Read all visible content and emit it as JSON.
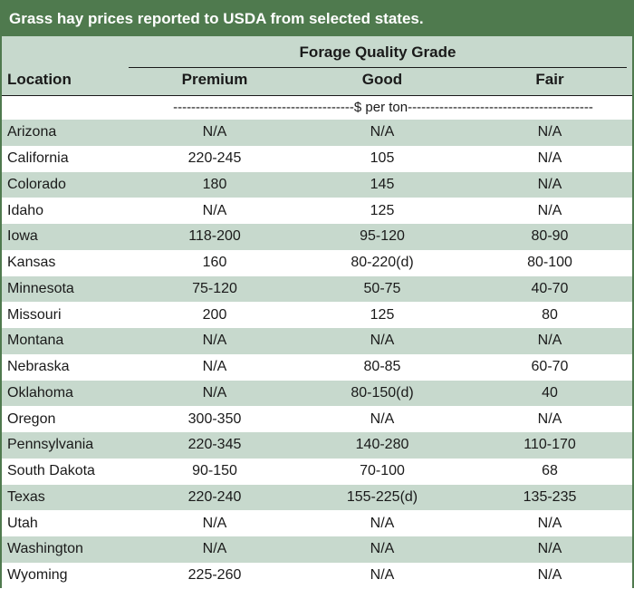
{
  "title": "Grass hay prices reported to USDA from selected states.",
  "header": {
    "location_label": "Location",
    "group_label": "Forage Quality Grade",
    "columns": [
      "Premium",
      "Good",
      "Fair"
    ],
    "units": "----------------------------------------$ per ton-----------------------------------------"
  },
  "rows": [
    {
      "location": "Arizona",
      "premium": "N/A",
      "good": "N/A",
      "fair": "N/A"
    },
    {
      "location": "California",
      "premium": "220-245",
      "good": "105",
      "fair": "N/A"
    },
    {
      "location": "Colorado",
      "premium": "180",
      "good": "145",
      "fair": "N/A"
    },
    {
      "location": "Idaho",
      "premium": "N/A",
      "good": "125",
      "fair": "N/A"
    },
    {
      "location": "Iowa",
      "premium": "118-200",
      "good": "95-120",
      "fair": "80-90"
    },
    {
      "location": "Kansas",
      "premium": "160",
      "good": "80-220(d)",
      "fair": "80-100"
    },
    {
      "location": "Minnesota",
      "premium": "75-120",
      "good": "50-75",
      "fair": "40-70"
    },
    {
      "location": "Missouri",
      "premium": "200",
      "good": "125",
      "fair": "80"
    },
    {
      "location": "Montana",
      "premium": "N/A",
      "good": "N/A",
      "fair": "N/A"
    },
    {
      "location": "Nebraska",
      "premium": "N/A",
      "good": "80-85",
      "fair": "60-70"
    },
    {
      "location": "Oklahoma",
      "premium": "N/A",
      "good": "80-150(d)",
      "fair": "40"
    },
    {
      "location": "Oregon",
      "premium": "300-350",
      "good": "N/A",
      "fair": "N/A"
    },
    {
      "location": "Pennsylvania",
      "premium": "220-345",
      "good": "140-280",
      "fair": "110-170"
    },
    {
      "location": "South Dakota",
      "premium": "90-150",
      "good": "70-100",
      "fair": "68"
    },
    {
      "location": "Texas",
      "premium": "220-240",
      "good": "155-225(d)",
      "fair": "135-235"
    },
    {
      "location": "Utah",
      "premium": "N/A",
      "good": "N/A",
      "fair": "N/A"
    },
    {
      "location": "Washington",
      "premium": "N/A",
      "good": "N/A",
      "fair": "N/A"
    },
    {
      "location": "Wyoming",
      "premium": "225-260",
      "good": "N/A",
      "fair": "N/A"
    }
  ],
  "colors": {
    "title_bg": "#4f7a4e",
    "shade": "#c7d9cd",
    "text": "#1a1a1a"
  }
}
